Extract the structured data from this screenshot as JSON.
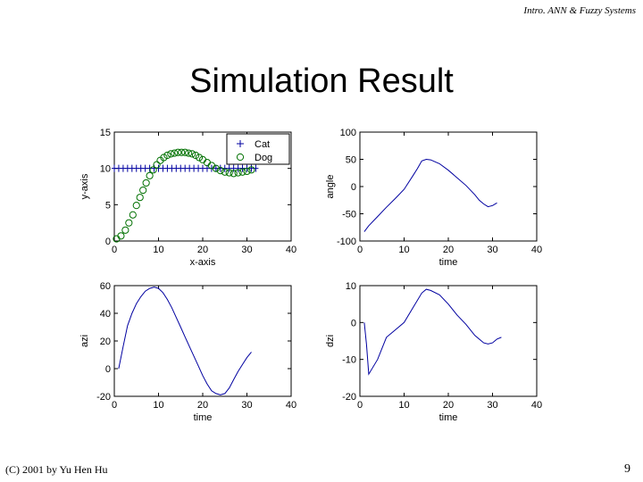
{
  "slide": {
    "header": "Intro. ANN & Fuzzy Systems",
    "title": "Simulation Result",
    "footer_left": "(C) 2001 by Yu Hen Hu",
    "page_number": "9"
  },
  "colors": {
    "line": "#0000a0",
    "dog": "#007000",
    "axis": "#000000"
  },
  "chart_data": [
    {
      "type": "line",
      "xlabel": "x-axis",
      "ylabel": "y-axis",
      "xlim": [
        0,
        40
      ],
      "ylim": [
        0,
        15
      ],
      "xticks": [
        0,
        10,
        20,
        30,
        40
      ],
      "yticks": [
        0,
        5,
        10,
        15
      ],
      "legend": {
        "placement": "top-right",
        "entries": [
          "Cat",
          "Dog"
        ]
      },
      "series": [
        {
          "name": "Cat",
          "marker": "plus",
          "x": [
            0,
            1,
            2,
            3,
            4,
            5,
            6,
            7,
            8,
            9,
            10,
            11,
            12,
            13,
            14,
            15,
            16,
            17,
            18,
            19,
            20,
            21,
            22,
            23,
            24,
            25,
            26,
            27,
            28,
            29,
            30,
            31,
            32
          ],
          "y": [
            10,
            10,
            10,
            10,
            10,
            10,
            10,
            10,
            10,
            10,
            10,
            10,
            10,
            10,
            10,
            10,
            10,
            10,
            10,
            10,
            10,
            10,
            10,
            10,
            10,
            10,
            10,
            10,
            10,
            10,
            10,
            10,
            10
          ]
        },
        {
          "name": "Dog",
          "marker": "circle",
          "x": [
            0.5,
            1.5,
            2.5,
            3.3,
            4.2,
            5,
            5.8,
            6.5,
            7.2,
            8,
            8.8,
            9.6,
            10.4,
            11.2,
            12,
            12.8,
            13.6,
            14.4,
            15.2,
            16,
            16.8,
            17.6,
            18.4,
            19.2,
            20,
            21,
            22,
            23,
            24,
            25,
            26,
            27,
            28,
            29,
            30,
            31
          ],
          "y": [
            0.3,
            0.7,
            1.5,
            2.5,
            3.6,
            4.9,
            6,
            7,
            8,
            9,
            9.8,
            10.5,
            11.1,
            11.5,
            11.8,
            12,
            12.1,
            12.2,
            12.2,
            12.2,
            12.1,
            12,
            11.8,
            11.5,
            11.2,
            10.8,
            10.4,
            10,
            9.7,
            9.5,
            9.4,
            9.3,
            9.4,
            9.5,
            9.6,
            9.8
          ]
        }
      ]
    },
    {
      "type": "line",
      "xlabel": "time",
      "ylabel": "angle",
      "xlim": [
        0,
        40
      ],
      "ylim": [
        -100,
        100
      ],
      "xticks": [
        0,
        10,
        20,
        30,
        40
      ],
      "yticks": [
        -100,
        -50,
        0,
        50,
        100
      ],
      "series": [
        {
          "x": [
            1,
            2,
            4,
            6,
            8,
            10,
            12,
            13,
            14,
            15,
            16,
            18,
            20,
            22,
            24,
            26,
            27,
            28,
            29,
            30,
            31
          ],
          "y": [
            -83,
            -72,
            -55,
            -38,
            -22,
            -5,
            20,
            33,
            47,
            50,
            49,
            42,
            30,
            16,
            2,
            -15,
            -25,
            -32,
            -37,
            -35,
            -30
          ]
        }
      ]
    },
    {
      "type": "line",
      "xlabel": "time",
      "ylabel": "azi",
      "xlim": [
        0,
        40
      ],
      "ylim": [
        -20,
        60
      ],
      "xticks": [
        0,
        10,
        20,
        30,
        40
      ],
      "yticks": [
        -20,
        0,
        20,
        40,
        60
      ],
      "series": [
        {
          "x": [
            1,
            2,
            3,
            4,
            5,
            6,
            7,
            8,
            9,
            10,
            11,
            12,
            13,
            14,
            15,
            16,
            17,
            18,
            19,
            20,
            21,
            22,
            23,
            24,
            25,
            26,
            27,
            28,
            29,
            30,
            31
          ],
          "y": [
            0,
            16,
            31,
            40,
            47,
            52,
            56,
            58,
            59,
            58,
            55,
            50,
            44,
            37,
            30,
            23,
            16,
            9,
            2,
            -5,
            -11,
            -16,
            -18,
            -19,
            -18,
            -14,
            -8,
            -2,
            3,
            8,
            12
          ]
        }
      ]
    },
    {
      "type": "line",
      "xlabel": "time",
      "ylabel": "dzi",
      "xlim": [
        0,
        40
      ],
      "ylim": [
        -20,
        10
      ],
      "xticks": [
        0,
        10,
        20,
        30,
        40
      ],
      "yticks": [
        -20,
        -10,
        0,
        10
      ],
      "series": [
        {
          "x": [
            1,
            1.5,
            2,
            4,
            6,
            8,
            10,
            12,
            14,
            15,
            16,
            18,
            20,
            22,
            24,
            26,
            28,
            29,
            30,
            31,
            32
          ],
          "y": [
            0,
            -6,
            -14,
            -10,
            -4,
            -2,
            0,
            4,
            8,
            9,
            8.7,
            7.5,
            5,
            2,
            -0.5,
            -3.5,
            -5.5,
            -5.8,
            -5.5,
            -4.5,
            -4
          ]
        }
      ]
    }
  ]
}
